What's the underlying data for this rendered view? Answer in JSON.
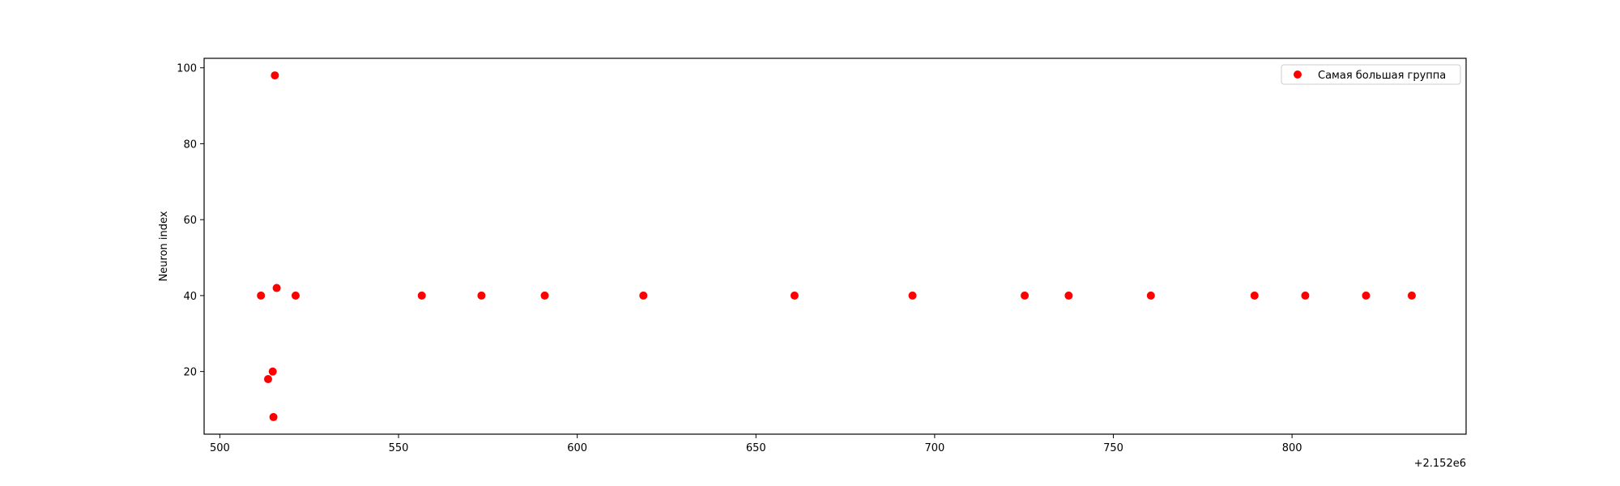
{
  "chart_data": {
    "type": "scatter",
    "title": "",
    "xlabel": "",
    "ylabel": "Neuron index",
    "x_offset_label": "+2.152e6",
    "xlim": [
      495.6,
      848.7
    ],
    "ylim": [
      3.5,
      102.5
    ],
    "xticks": [
      500,
      550,
      600,
      650,
      700,
      750,
      800
    ],
    "yticks": [
      20,
      40,
      60,
      80,
      100
    ],
    "grid": false,
    "legend_position": "top-right",
    "series": [
      {
        "name": "Самая большая группа",
        "color": "#ff0000",
        "points": [
          {
            "x": 511.5,
            "y": 40
          },
          {
            "x": 513.5,
            "y": 18
          },
          {
            "x": 514.8,
            "y": 20
          },
          {
            "x": 515.0,
            "y": 8
          },
          {
            "x": 515.4,
            "y": 98
          },
          {
            "x": 515.9,
            "y": 42
          },
          {
            "x": 521.2,
            "y": 40
          },
          {
            "x": 556.5,
            "y": 40
          },
          {
            "x": 573.2,
            "y": 40
          },
          {
            "x": 590.9,
            "y": 40
          },
          {
            "x": 618.5,
            "y": 40
          },
          {
            "x": 660.8,
            "y": 40
          },
          {
            "x": 693.8,
            "y": 40
          },
          {
            "x": 725.2,
            "y": 40
          },
          {
            "x": 737.5,
            "y": 40
          },
          {
            "x": 760.5,
            "y": 40
          },
          {
            "x": 789.5,
            "y": 40
          },
          {
            "x": 803.7,
            "y": 40
          },
          {
            "x": 820.7,
            "y": 40
          },
          {
            "x": 833.5,
            "y": 40
          }
        ]
      }
    ]
  }
}
